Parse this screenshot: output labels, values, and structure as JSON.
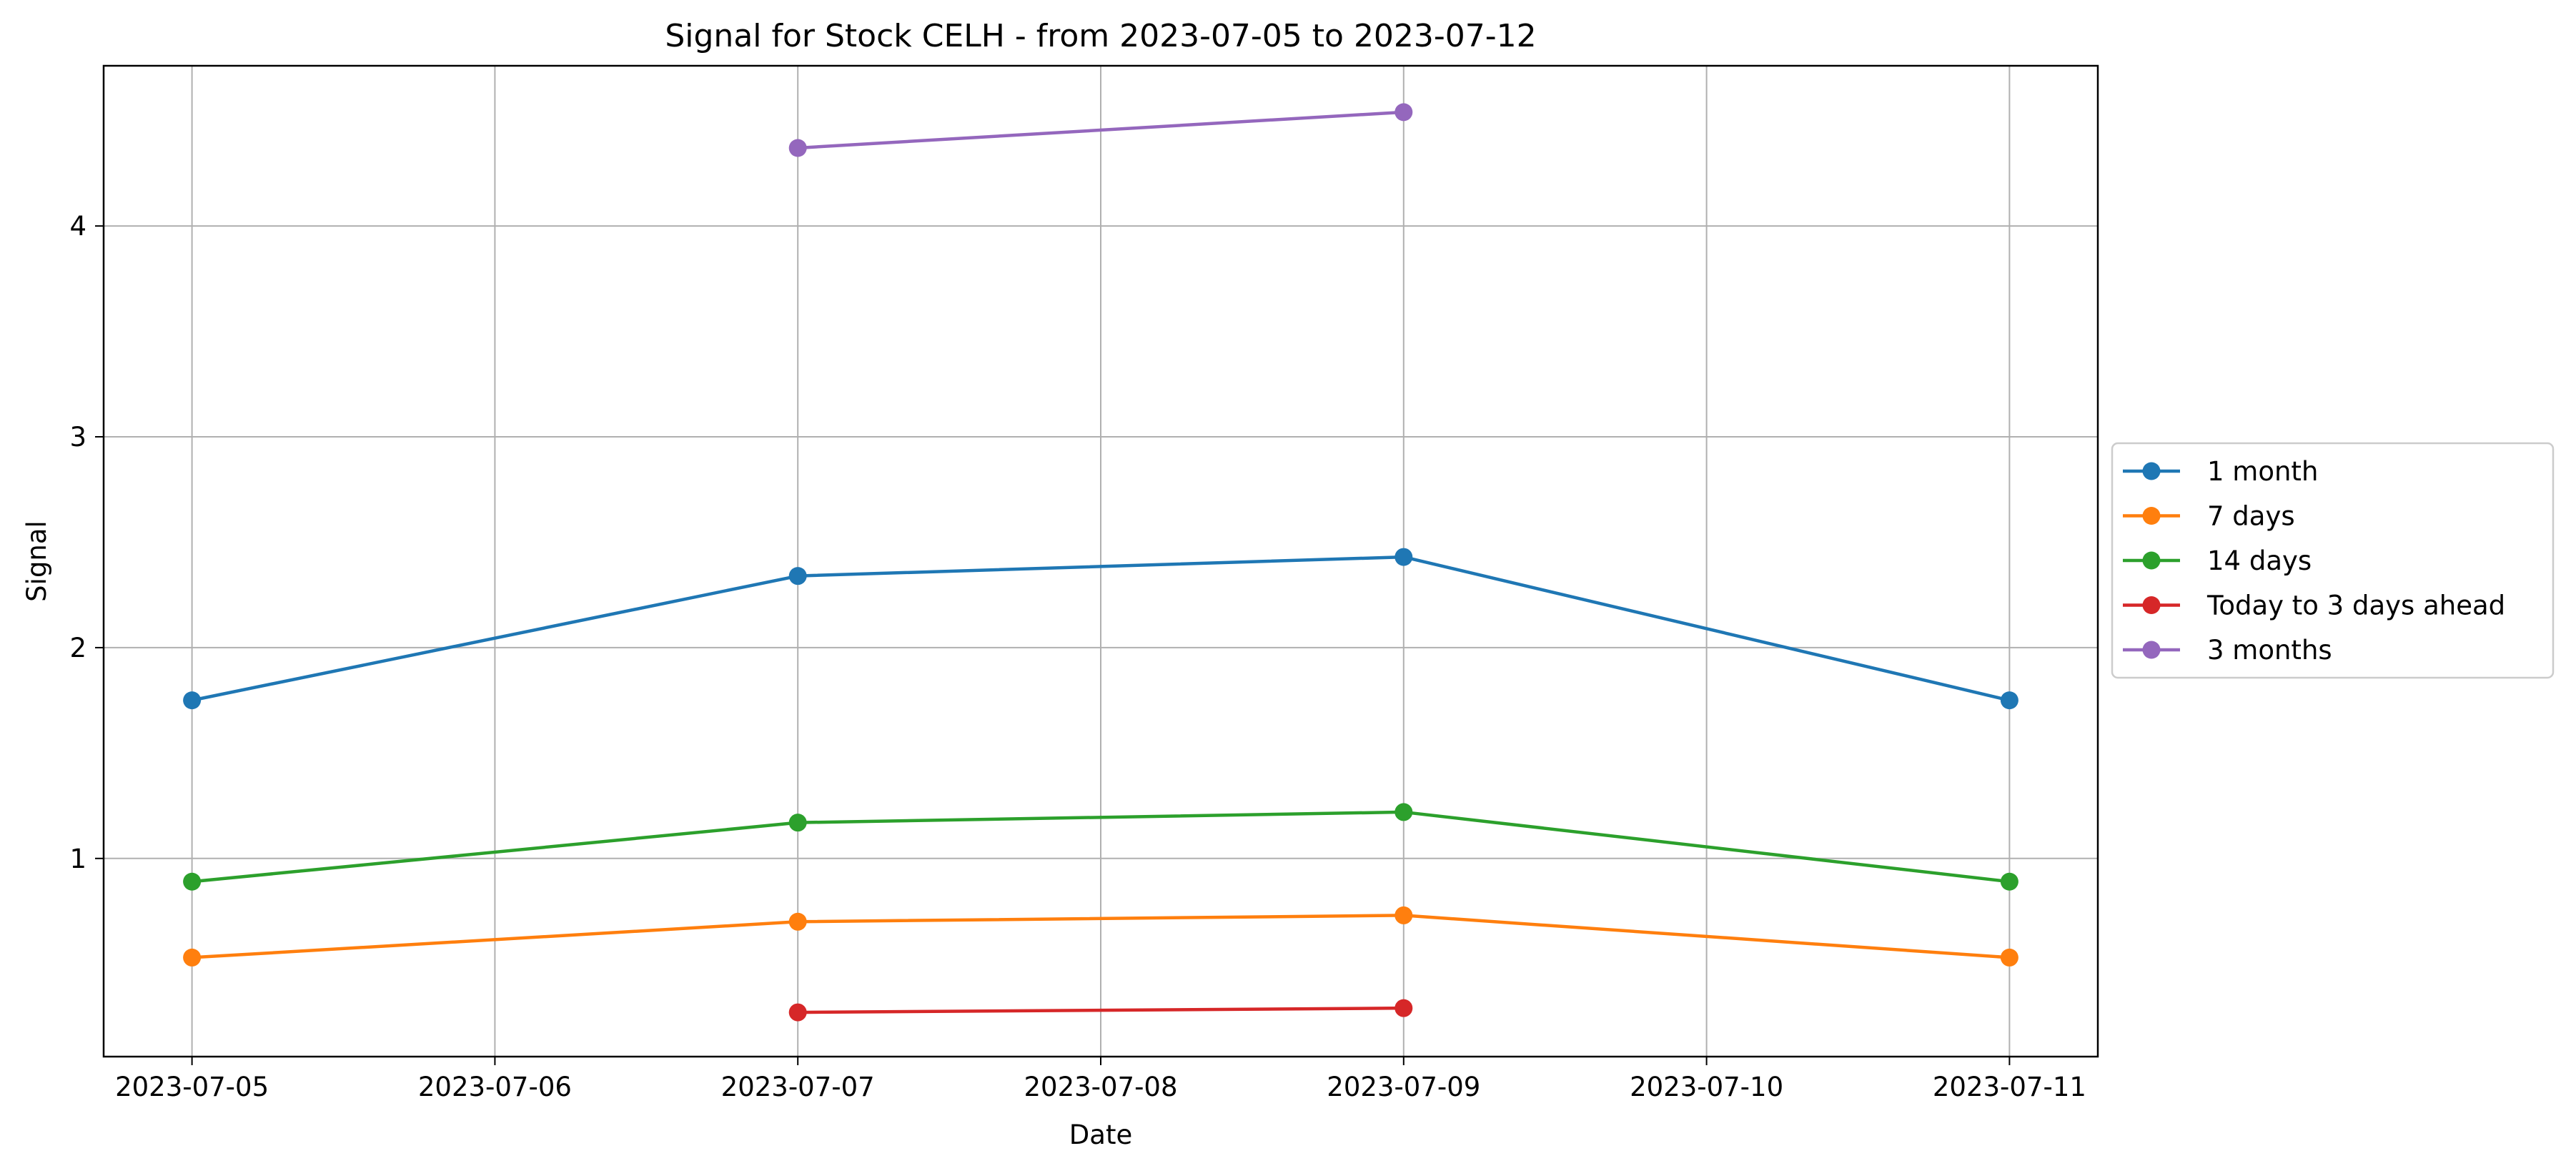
{
  "chart_data": {
    "type": "line",
    "title": "Signal for Stock CELH - from 2023-07-05 to 2023-07-12",
    "xlabel": "Date",
    "ylabel": "Signal",
    "x": [
      "2023-07-05",
      "2023-07-07",
      "2023-07-09",
      "2023-07-11"
    ],
    "xticks": [
      "2023-07-05",
      "2023-07-06",
      "2023-07-07",
      "2023-07-08",
      "2023-07-09",
      "2023-07-10",
      "2023-07-11"
    ],
    "yticks": [
      1,
      2,
      3,
      4
    ],
    "xlim": [
      "2023-07-04T17:00",
      "2023-07-11T07:00"
    ],
    "ylim": [
      0.06,
      4.76
    ],
    "grid": true,
    "legend_position": "center-right outside",
    "series": [
      {
        "name": "1 month",
        "color": "#1f77b4",
        "values": [
          1.75,
          2.34,
          2.43,
          1.75
        ]
      },
      {
        "name": "7 days",
        "color": "#ff7f0e",
        "values": [
          0.53,
          0.7,
          0.73,
          0.53
        ]
      },
      {
        "name": "14 days",
        "color": "#2ca02c",
        "values": [
          0.89,
          1.17,
          1.22,
          0.89
        ]
      },
      {
        "name": "Today to 3 days ahead",
        "color": "#d62728",
        "values": [
          null,
          0.27,
          0.29,
          null
        ]
      },
      {
        "name": "3 months",
        "color": "#9467bd",
        "values": [
          null,
          4.37,
          4.54,
          null
        ]
      }
    ]
  }
}
